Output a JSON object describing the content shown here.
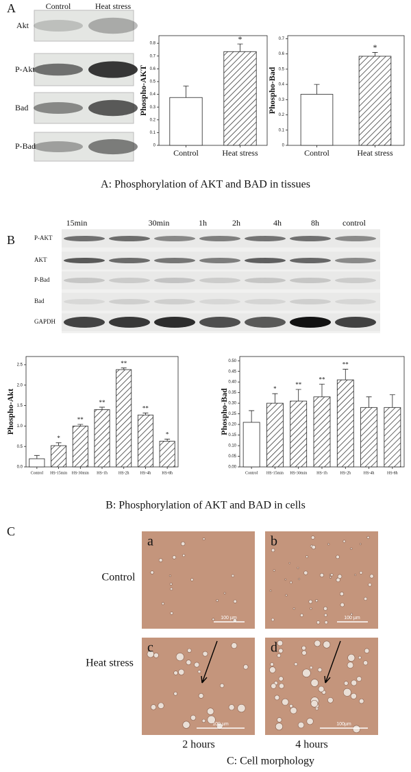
{
  "chart_data": [
    {
      "type": "bar",
      "ylabel": "Phospho-AKT",
      "categories": [
        "Control",
        "Heat stress"
      ],
      "values": [
        0.375,
        0.735
      ],
      "errors": [
        0.09,
        0.06
      ],
      "annotations": [
        null,
        "*"
      ],
      "hatched": [
        false,
        true
      ],
      "ylim": [
        0,
        0.86
      ],
      "yticks": [
        0,
        0.1,
        0.2,
        0.3,
        0.4,
        0.5,
        0.6,
        0.7,
        0.8
      ]
    },
    {
      "type": "bar",
      "ylabel": "Phospho-Bad",
      "categories": [
        "Control",
        "Heat stress"
      ],
      "values": [
        0.335,
        0.585
      ],
      "errors": [
        0.065,
        0.025
      ],
      "annotations": [
        null,
        "*"
      ],
      "hatched": [
        false,
        true
      ],
      "ylim": [
        0,
        0.72
      ],
      "yticks": [
        0,
        0.1,
        0.2,
        0.3,
        0.4,
        0.5,
        0.6,
        0.7
      ]
    },
    {
      "type": "bar",
      "ylabel": "Phospho-Akt",
      "categories": [
        "Control",
        "HS-15min",
        "HS-30min",
        "HS-1h",
        "HS-2h",
        "HS-4h",
        "HS-8h"
      ],
      "values": [
        0.2,
        0.52,
        1.0,
        1.4,
        2.38,
        1.27,
        0.63
      ],
      "errors": [
        0.08,
        0.07,
        0.04,
        0.06,
        0.04,
        0.05,
        0.05
      ],
      "annotations": [
        null,
        "*",
        "**",
        "**",
        "**",
        "**",
        "*"
      ],
      "hatched": [
        false,
        true,
        true,
        true,
        true,
        true,
        true
      ],
      "ylim": [
        0,
        2.7
      ],
      "yticks": [
        {
          "value": 0,
          "label": "0.0"
        },
        0.5,
        {
          "value": 1,
          "label": "1.0"
        },
        1.5,
        {
          "value": 2,
          "label": "2.0"
        },
        2.5
      ]
    },
    {
      "type": "bar",
      "ylabel": "Phospho-Bad",
      "categories": [
        "Control",
        "HS-15min",
        "HS-30min",
        "HS-1h",
        "HS-2h",
        "HS-4h",
        "HS-8h"
      ],
      "values": [
        0.21,
        0.3,
        0.31,
        0.33,
        0.41,
        0.28,
        0.28
      ],
      "errors": [
        0.055,
        0.045,
        0.055,
        0.06,
        0.05,
        0.05,
        0.06
      ],
      "annotations": [
        null,
        "*",
        "**",
        "**",
        "**",
        null,
        null
      ],
      "hatched": [
        false,
        true,
        true,
        true,
        true,
        true,
        true
      ],
      "ylim": [
        0,
        0.52
      ],
      "yticks": [
        {
          "value": 0,
          "label": "0.00"
        },
        0.05,
        {
          "value": 0.1,
          "label": "0.10"
        },
        0.15,
        {
          "value": 0.2,
          "label": "0.20"
        },
        0.25,
        {
          "value": 0.3,
          "label": "0.30"
        },
        0.35,
        {
          "value": 0.4,
          "label": "0.40"
        },
        0.45,
        {
          "value": 0.5,
          "label": "0.50"
        }
      ]
    }
  ],
  "panel_a": {
    "label": "A",
    "blot_lanes": [
      "Control",
      "Heat stress"
    ],
    "blot_rows": [
      "Akt",
      "P-Akt",
      "Bad",
      "P-Bad"
    ],
    "caption": "A: Phosphorylation of AKT and BAD in tissues"
  },
  "panel_b": {
    "label": "B",
    "blot_lanes": [
      "15min",
      "30min",
      "1h",
      "2h",
      "4h",
      "8h",
      "control"
    ],
    "blot_rows": [
      "P-AKT",
      "AKT",
      "P-Bad",
      "Bad",
      "GAPDH"
    ],
    "caption": "B: Phosphorylation of AKT and BAD in cells"
  },
  "panel_c": {
    "label": "C",
    "rows": [
      "Control",
      "Heat stress"
    ],
    "columns": [
      "2 hours",
      "4 hours"
    ],
    "images": [
      "a",
      "b",
      "c",
      "d"
    ],
    "scale_bars": [
      "100 µm",
      "100 µm",
      "100 µm",
      "100µm"
    ],
    "caption": "C: Cell morphology"
  }
}
